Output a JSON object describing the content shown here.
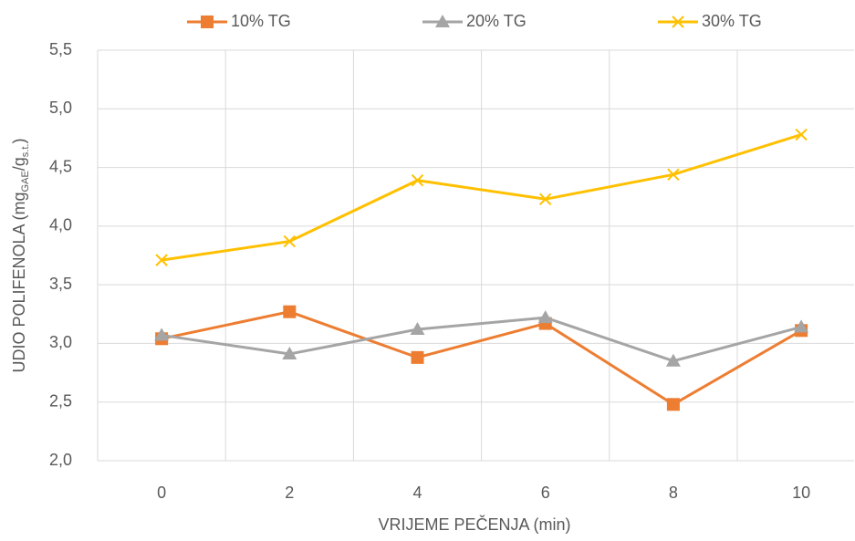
{
  "chart_data": {
    "type": "line",
    "categories": [
      "0",
      "2",
      "4",
      "6",
      "8",
      "10"
    ],
    "series": [
      {
        "name": "10% TG",
        "color": "#ed7d31",
        "marker": "square",
        "values": [
          3.04,
          3.27,
          2.88,
          3.17,
          2.48,
          3.11
        ]
      },
      {
        "name": "20% TG",
        "color": "#a5a5a5",
        "marker": "triangle",
        "values": [
          3.07,
          2.91,
          3.12,
          3.22,
          2.85,
          3.14
        ]
      },
      {
        "name": "30% TG",
        "color": "#ffc000",
        "marker": "x",
        "values": [
          3.71,
          3.87,
          4.39,
          4.23,
          4.44,
          4.78
        ]
      }
    ],
    "x_label": "VRIJEME PEČENJA (min)",
    "y_label_parts": [
      "UDIO POLIFENOLA (mg",
      "GAE",
      "/g",
      "s.t.",
      ")"
    ],
    "ylim": [
      2.0,
      5.5
    ],
    "yticks": [
      {
        "value": 2.0,
        "label": "2,0"
      },
      {
        "value": 2.5,
        "label": "2,5"
      },
      {
        "value": 3.0,
        "label": "3,0"
      },
      {
        "value": 3.5,
        "label": "3,5"
      },
      {
        "value": 4.0,
        "label": "4,0"
      },
      {
        "value": 4.5,
        "label": "4,5"
      },
      {
        "value": 5.0,
        "label": "5,0"
      },
      {
        "value": 5.5,
        "label": "5,5"
      }
    ],
    "grid": true,
    "legend": "top"
  }
}
